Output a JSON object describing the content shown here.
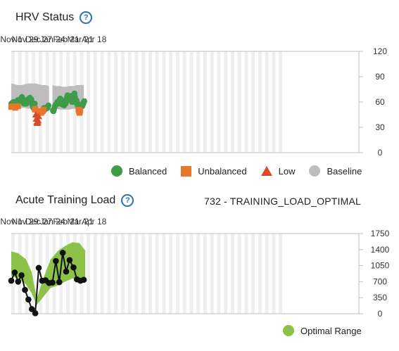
{
  "colors": {
    "balanced": "#3f9b48",
    "unbalanced": "#e8772e",
    "low": "#d94b2b",
    "baseline": "#bdbdbd",
    "optimal_range": "#8cc249",
    "load_line": "#111111",
    "help_icon": "#2f6fb5"
  },
  "hrv": {
    "title": "HRV Status",
    "help_icon": "help-circle-icon",
    "x_ticks": [
      "Nov 1",
      "Nov 29",
      "Dec 27",
      "Jan 24",
      "Feb 21",
      "Mar 21",
      "Apr 18"
    ],
    "y_ticks": [
      "120",
      "90",
      "60",
      "30",
      "0"
    ],
    "legend": [
      {
        "label": "Balanced",
        "shape": "circle",
        "color_key": "balanced"
      },
      {
        "label": "Unbalanced",
        "shape": "square",
        "color_key": "unbalanced"
      },
      {
        "label": "Low",
        "shape": "triangle",
        "color_key": "low"
      },
      {
        "label": "Baseline",
        "shape": "circle",
        "color_key": "baseline"
      }
    ]
  },
  "load": {
    "title": "Acute Training Load",
    "help_icon": "help-circle-icon",
    "status": "732 - TRAINING_LOAD_OPTIMAL",
    "x_ticks": [
      "Nov 1",
      "Nov 29",
      "Dec 27",
      "Jan 24",
      "Feb 21",
      "Mar 21",
      "Apr 18"
    ],
    "y_ticks": [
      "1750",
      "1400",
      "1050",
      "700",
      "350",
      "0"
    ],
    "legend": [
      {
        "label": "Optimal Range",
        "shape": "circle",
        "color_key": "optimal_range"
      }
    ]
  },
  "chart_data": [
    {
      "type": "scatter",
      "title": "HRV Status",
      "x_axis": "date",
      "x_tick_labels": [
        "Nov 1",
        "Nov 29",
        "Dec 27",
        "Jan 24",
        "Feb 21",
        "Mar 21",
        "Apr 18"
      ],
      "ylim": [
        0,
        120
      ],
      "y_ticks": [
        0,
        30,
        60,
        90,
        120
      ],
      "y_axis_side": "right",
      "grid": "alternating weekly bands",
      "legend_position": "bottom",
      "baseline_range": {
        "dates": [
          "Nov 1",
          "Nov 8",
          "Nov 15",
          "Nov 22",
          "Nov 29",
          "Dec 6",
          "Dec 13",
          "Dec 20",
          "Dec 27",
          "Jan 3",
          "Jan 10",
          "Jan 17",
          "Jan 24",
          "Jan 31",
          "Feb 7",
          "Feb 14",
          "Feb 21",
          "Feb 28",
          "Mar 7",
          "Mar 14",
          "Mar 21",
          "Mar 28"
        ],
        "lower": [
          52,
          52,
          52,
          53,
          53,
          52,
          52,
          51,
          50,
          50,
          51,
          51,
          52,
          52,
          51,
          51,
          51,
          51,
          52,
          52,
          52,
          52
        ],
        "upper": [
          82,
          81,
          80,
          80,
          81,
          82,
          82,
          82,
          81,
          80,
          80,
          79,
          80,
          79,
          79,
          78,
          78,
          79,
          79,
          80,
          80,
          80
        ],
        "gap_between": [
          "Jan 17",
          "Jan 24"
        ]
      },
      "series": [
        {
          "name": "Balanced",
          "color_key": "balanced",
          "points": [
            [
              "Nov 1",
              58
            ],
            [
              "Nov 2",
              57
            ],
            [
              "Nov 3",
              59
            ],
            [
              "Nov 4",
              57
            ],
            [
              "Nov 5",
              58
            ],
            [
              "Nov 6",
              60
            ],
            [
              "Nov 7",
              57
            ],
            [
              "Nov 8",
              59
            ],
            [
              "Nov 10",
              57
            ],
            [
              "Nov 11",
              58
            ],
            [
              "Nov 12",
              56
            ],
            [
              "Nov 13",
              60
            ],
            [
              "Nov 14",
              62
            ],
            [
              "Nov 15",
              60
            ],
            [
              "Nov 16",
              62
            ],
            [
              "Nov 17",
              60
            ],
            [
              "Nov 18",
              61
            ],
            [
              "Nov 19",
              62
            ],
            [
              "Nov 20",
              60
            ],
            [
              "Nov 21",
              63
            ],
            [
              "Nov 22",
              65
            ],
            [
              "Nov 23",
              66
            ],
            [
              "Nov 24",
              64
            ],
            [
              "Nov 25",
              61
            ],
            [
              "Nov 26",
              59
            ],
            [
              "Nov 27",
              58
            ],
            [
              "Nov 28",
              59
            ],
            [
              "Nov 29",
              58
            ],
            [
              "Nov 30",
              60
            ],
            [
              "Dec 1",
              59
            ],
            [
              "Dec 2",
              58
            ],
            [
              "Dec 3",
              60
            ],
            [
              "Dec 4",
              62
            ],
            [
              "Dec 5",
              63
            ],
            [
              "Dec 6",
              60
            ],
            [
              "Dec 7",
              62
            ],
            [
              "Dec 8",
              64
            ],
            [
              "Dec 9",
              65
            ],
            [
              "Dec 10",
              64
            ],
            [
              "Dec 11",
              62
            ],
            [
              "Dec 12",
              63
            ],
            [
              "Dec 13",
              60
            ],
            [
              "Dec 14",
              57
            ],
            [
              "Dec 15",
              55
            ],
            [
              "Dec 16",
              53
            ],
            [
              "Dec 17",
              55
            ],
            [
              "Dec 18",
              57
            ],
            [
              "Dec 19",
              58
            ],
            [
              "Jan 7",
              53
            ],
            [
              "Jan 8",
              51
            ],
            [
              "Jan 9",
              52
            ],
            [
              "Jan 10",
              53
            ],
            [
              "Jan 11",
              52
            ],
            [
              "Jan 12",
              53
            ],
            [
              "Jan 13",
              54
            ],
            [
              "Jan 14",
              53
            ],
            [
              "Jan 15",
              55
            ],
            [
              "Jan 16",
              56
            ],
            [
              "Jan 25",
              50
            ],
            [
              "Jan 26",
              49
            ],
            [
              "Jan 27",
              51
            ],
            [
              "Jan 28",
              53
            ],
            [
              "Jan 29",
              55
            ],
            [
              "Jan 30",
              56
            ],
            [
              "Jan 31",
              57
            ],
            [
              "Feb 1",
              57
            ],
            [
              "Feb 2",
              58
            ],
            [
              "Feb 3",
              60
            ],
            [
              "Feb 4",
              59
            ],
            [
              "Feb 5",
              58
            ],
            [
              "Feb 6",
              60
            ],
            [
              "Feb 7",
              62
            ],
            [
              "Feb 8",
              63
            ],
            [
              "Feb 9",
              64
            ],
            [
              "Feb 10",
              63
            ],
            [
              "Feb 11",
              60
            ],
            [
              "Feb 12",
              58
            ],
            [
              "Feb 13",
              57
            ],
            [
              "Feb 14",
              60
            ],
            [
              "Feb 15",
              61
            ],
            [
              "Feb 16",
              58
            ],
            [
              "Feb 17",
              56
            ],
            [
              "Feb 18",
              58
            ],
            [
              "Feb 19",
              60
            ],
            [
              "Feb 20",
              58
            ],
            [
              "Feb 21",
              60
            ],
            [
              "Feb 22",
              64
            ],
            [
              "Feb 23",
              66
            ],
            [
              "Feb 24",
              68
            ],
            [
              "Feb 25",
              65
            ],
            [
              "Feb 26",
              63
            ],
            [
              "Feb 27",
              66
            ],
            [
              "Feb 28",
              65
            ],
            [
              "Mar 1",
              67
            ],
            [
              "Mar 2",
              65
            ],
            [
              "Mar 3",
              62
            ],
            [
              "Mar 4",
              60
            ],
            [
              "Mar 5",
              63
            ],
            [
              "Mar 6",
              66
            ],
            [
              "Mar 7",
              68
            ],
            [
              "Mar 8",
              69
            ],
            [
              "Mar 9",
              70
            ],
            [
              "Mar 10",
              66
            ],
            [
              "Mar 11",
              60
            ],
            [
              "Mar 12",
              59
            ],
            [
              "Mar 13",
              62
            ],
            [
              "Mar 14",
              60
            ],
            [
              "Mar 15",
              58
            ],
            [
              "Mar 16",
              55
            ],
            [
              "Mar 22",
              56
            ],
            [
              "Mar 23",
              57
            ],
            [
              "Mar 24",
              56
            ],
            [
              "Mar 25",
              55
            ],
            [
              "Mar 26",
              57
            ],
            [
              "Mar 27",
              58
            ],
            [
              "Mar 28",
              60
            ],
            [
              "Mar 29",
              61
            ]
          ]
        },
        {
          "name": "Unbalanced",
          "color_key": "unbalanced",
          "points": [
            [
              "Nov 1",
              54
            ],
            [
              "Nov 4",
              55
            ],
            [
              "Nov 9",
              53
            ],
            [
              "Nov 10",
              54
            ],
            [
              "Nov 15",
              55
            ],
            [
              "Dec 19",
              51
            ],
            [
              "Dec 20",
              52
            ],
            [
              "Dec 27",
              49
            ],
            [
              "Dec 28",
              47
            ],
            [
              "Dec 29",
              48
            ],
            [
              "Dec 30",
              49
            ],
            [
              "Dec 31",
              48
            ],
            [
              "Jan 1",
              47
            ],
            [
              "Jan 2",
              48
            ],
            [
              "Jan 3",
              49
            ],
            [
              "Jan 4",
              49
            ],
            [
              "Jan 5",
              50
            ],
            [
              "Jan 6",
              51
            ],
            [
              "Mar 17",
              51
            ],
            [
              "Mar 18",
              49
            ],
            [
              "Mar 19",
              47
            ],
            [
              "Mar 20",
              48
            ],
            [
              "Mar 21",
              50
            ]
          ]
        },
        {
          "name": "Low",
          "color_key": "low",
          "points": [
            [
              "Dec 21",
              45
            ],
            [
              "Dec 22",
              40
            ],
            [
              "Dec 23",
              36
            ],
            [
              "Dec 24",
              35
            ],
            [
              "Dec 25",
              36
            ],
            [
              "Dec 26",
              38
            ],
            [
              "Dec 27",
              43
            ]
          ]
        }
      ]
    },
    {
      "type": "line",
      "title": "Acute Training Load",
      "subtitle": "732 - TRAINING_LOAD_OPTIMAL",
      "x_axis": "date",
      "x_tick_labels": [
        "Nov 1",
        "Nov 29",
        "Dec 27",
        "Jan 24",
        "Feb 21",
        "Mar 21",
        "Apr 18"
      ],
      "ylim": [
        0,
        1750
      ],
      "y_ticks": [
        0,
        350,
        700,
        1050,
        1400,
        1750
      ],
      "y_axis_side": "right",
      "grid": "alternating weekly bands",
      "legend_position": "bottom-right",
      "optimal_range": {
        "dates": [
          "Nov 1",
          "Nov 15",
          "Dec 1",
          "Dec 13",
          "Dec 23",
          "Jan 5",
          "Jan 20",
          "Feb 5",
          "Feb 19",
          "Mar 5",
          "Mar 19",
          "Mar 31"
        ],
        "lower": [
          820,
          780,
          640,
          440,
          190,
          360,
          560,
          620,
          700,
          770,
          760,
          690
        ],
        "upper": [
          1360,
          1320,
          1190,
          900,
          330,
          760,
          1180,
          1380,
          1480,
          1560,
          1540,
          1380
        ]
      },
      "series": [
        {
          "name": "",
          "color_key": "load_line",
          "points": [
            [
              "Nov 1",
              720
            ],
            [
              "Nov 8",
              900
            ],
            [
              "Nov 15",
              700
            ],
            [
              "Nov 22",
              840
            ],
            [
              "Nov 29",
              520
            ],
            [
              "Dec 6",
              310
            ],
            [
              "Dec 13",
              100
            ],
            [
              "Dec 20",
              10
            ],
            [
              "Dec 27",
              1000
            ],
            [
              "Jan 3",
              720
            ],
            [
              "Jan 10",
              730
            ],
            [
              "Jan 17",
              670
            ],
            [
              "Jan 24",
              680
            ],
            [
              "Jan 31",
              1150
            ],
            [
              "Feb 7",
              690
            ],
            [
              "Feb 14",
              1330
            ],
            [
              "Feb 21",
              920
            ],
            [
              "Feb 28",
              1170
            ],
            [
              "Mar 7",
              1010
            ],
            [
              "Mar 14",
              750
            ],
            [
              "Mar 21",
              720
            ],
            [
              "Mar 28",
              740
            ]
          ]
        }
      ]
    }
  ]
}
